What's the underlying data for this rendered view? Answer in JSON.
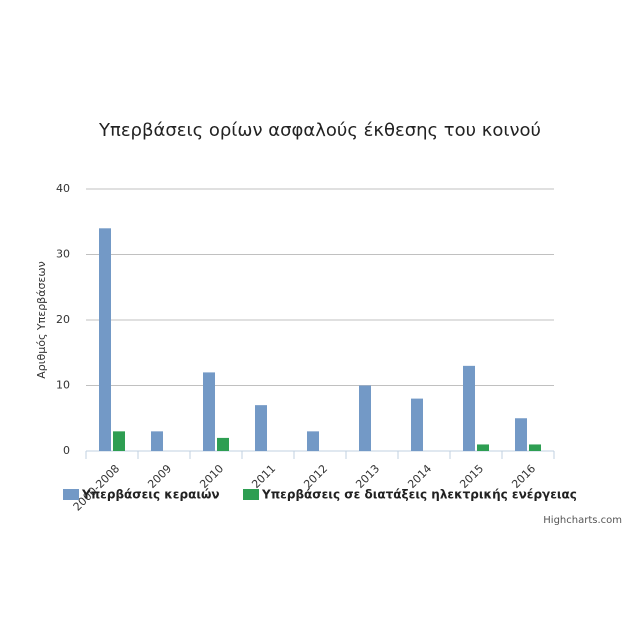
{
  "chart_data": {
    "type": "bar",
    "title": "Υπερβάσεις ορίων ασφαλούς έκθεσης του κοινού",
    "y_axis_title": "Αριθμός Υπερβάσεων",
    "categories": [
      "2000-2008",
      "2009",
      "2010",
      "2011",
      "2012",
      "2013",
      "2014",
      "2015",
      "2016"
    ],
    "series": [
      {
        "name": "Υπερβάσεις κεραιών",
        "color": "#7399c6",
        "values": [
          34,
          3,
          12,
          7,
          3,
          10,
          8,
          13,
          5
        ]
      },
      {
        "name": "Υπερβάσεις σε διατάξεις ηλεκτρικής ενέργειας",
        "color": "#2e9e52",
        "values": [
          3,
          0,
          2,
          0,
          0,
          0,
          0,
          1,
          1
        ]
      }
    ],
    "ylim": [
      0,
      40
    ],
    "yticks": [
      0,
      10,
      20,
      30,
      40
    ],
    "grid": true,
    "credits": "Highcharts.com"
  }
}
